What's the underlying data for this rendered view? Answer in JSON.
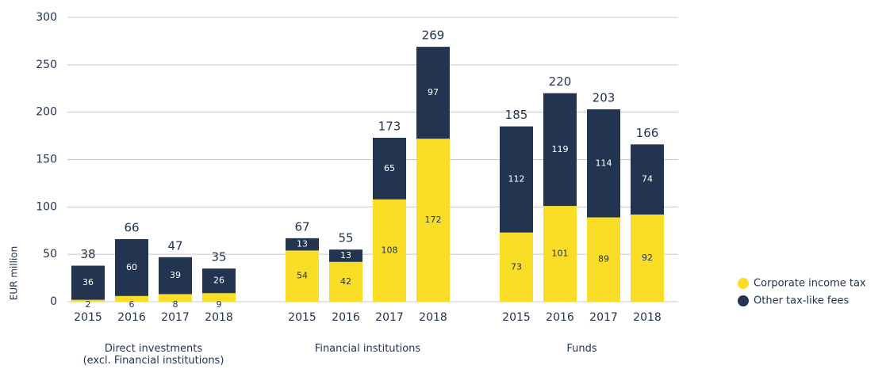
{
  "chart_data": {
    "type": "bar",
    "stacked": true,
    "y_label": "EUR million",
    "groups": [
      "Direct investments\n(excl. Financial institutions)",
      "Financial institutions",
      "Funds"
    ],
    "categories": [
      [
        "2015",
        "2016",
        "2017",
        "2018"
      ],
      [
        "2015",
        "2016",
        "2017",
        "2018"
      ],
      [
        "2015",
        "2016",
        "2017",
        "2018"
      ]
    ],
    "series": [
      {
        "name": "Corporate income tax",
        "color": "#f9dd26",
        "values": [
          [
            2,
            6,
            8,
            9
          ],
          [
            54,
            42,
            108,
            172
          ],
          [
            73,
            101,
            89,
            92
          ]
        ]
      },
      {
        "name": "Other tax-like fees",
        "color": "#22344f",
        "values": [
          [
            36,
            60,
            39,
            26
          ],
          [
            13,
            13,
            65,
            97
          ],
          [
            112,
            119,
            114,
            74
          ]
        ]
      }
    ],
    "totals": [
      [
        38,
        66,
        47,
        35
      ],
      [
        67,
        55,
        173,
        269
      ],
      [
        185,
        220,
        203,
        166
      ]
    ],
    "ylim": [
      0,
      300
    ],
    "yticks": [
      0,
      50,
      100,
      150,
      200,
      250,
      300
    ],
    "grid": true,
    "legend": "right"
  }
}
